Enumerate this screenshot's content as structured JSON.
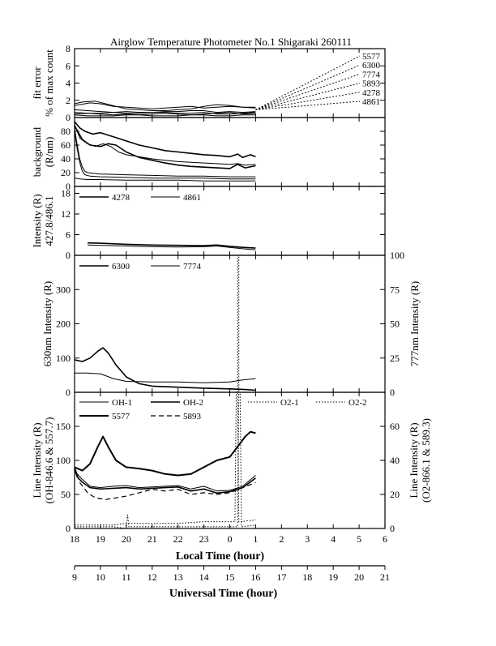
{
  "chart_data": {
    "type": "line",
    "title": "Airglow Temperature Photometer No.1  Shigaraki  260111",
    "x": {
      "local_label": "Local Time (hour)",
      "local_ticks": [
        "18",
        "19",
        "20",
        "21",
        "22",
        "23",
        "0",
        "1",
        "2",
        "3",
        "4",
        "5",
        "6"
      ],
      "ut_label": "Universal Time (hour)",
      "ut_ticks": [
        "9",
        "10",
        "11",
        "12",
        "13",
        "14",
        "15",
        "16",
        "17",
        "18",
        "19",
        "20",
        "21"
      ],
      "range_ut": [
        9,
        21
      ]
    },
    "panels": [
      {
        "id": "fit-error",
        "ylabel_lines": [
          "fit error",
          "% of max count"
        ],
        "ylim": [
          0,
          8
        ],
        "yticks": [
          "0",
          "2",
          "4",
          "6",
          "8"
        ],
        "series": [
          {
            "name": "5577",
            "style": "solid",
            "width": 1,
            "x": [
              9,
              9.2,
              9.6,
              10,
              10.5,
              11,
              11.5,
              12,
              12.5,
              13,
              13.5,
              14,
              14.5,
              15,
              15.5,
              16
            ],
            "y": [
              1.4,
              1.5,
              1.7,
              1.6,
              1.3,
              1.2,
              1.1,
              1.0,
              1.1,
              1.2,
              1.3,
              1.1,
              1.2,
              1.3,
              1.2,
              1.1
            ]
          },
          {
            "name": "6300",
            "style": "solid",
            "width": 1,
            "x": [
              9,
              9.3,
              9.8,
              10.2,
              10.6,
              11,
              11.5,
              12,
              12.5,
              13,
              13.5,
              14,
              14.5,
              15,
              15.5,
              16
            ],
            "y": [
              1.6,
              1.8,
              1.9,
              1.6,
              1.3,
              1.0,
              0.9,
              0.8,
              0.8,
              0.9,
              1.0,
              1.3,
              1.5,
              1.4,
              1.2,
              1.2
            ]
          },
          {
            "name": "7774",
            "style": "solid",
            "width": 1,
            "x": [
              9,
              9.5,
              10,
              10.5,
              11,
              11.5,
              12,
              12.5,
              13,
              13.5,
              14,
              14.5,
              15,
              15.5,
              16
            ],
            "y": [
              0.6,
              0.5,
              0.5,
              0.6,
              0.7,
              0.6,
              0.6,
              0.7,
              0.7,
              0.8,
              0.8,
              0.6,
              0.7,
              0.6,
              0.7
            ]
          },
          {
            "name": "5893",
            "style": "solid",
            "width": 1,
            "x": [
              9,
              9.5,
              10,
              10.5,
              11,
              11.5,
              12,
              12.5,
              13,
              13.5,
              14,
              14.5,
              15,
              15.5,
              16
            ],
            "y": [
              0.9,
              0.8,
              0.7,
              0.6,
              0.5,
              0.5,
              0.6,
              0.6,
              0.5,
              0.5,
              0.6,
              0.4,
              0.4,
              0.5,
              0.6
            ]
          },
          {
            "name": "4278",
            "style": "solid",
            "width": 1,
            "x": [
              9,
              9.5,
              10,
              10.5,
              11,
              11.5,
              12,
              12.5,
              13,
              13.5,
              14,
              14.5,
              15,
              15.5,
              16
            ],
            "y": [
              0.3,
              0.2,
              0.2,
              0.2,
              0.3,
              0.3,
              0.2,
              0.2,
              0.2,
              0.3,
              0.3,
              0.2,
              0.2,
              0.3,
              0.3
            ]
          },
          {
            "name": "4861",
            "style": "solid",
            "width": 1,
            "x": [
              9,
              9.5,
              10,
              10.5,
              11,
              11.5,
              12,
              12.5,
              13,
              13.5,
              14,
              14.5,
              15,
              15.5,
              16
            ],
            "y": [
              0.4,
              0.5,
              0.4,
              0.3,
              0.4,
              0.3,
              0.4,
              0.5,
              0.4,
              0.3,
              0.4,
              0.5,
              0.6,
              0.4,
              0.5
            ]
          }
        ],
        "labels": [
          "5577",
          "6300",
          "7774",
          "5893",
          "4278",
          "4861"
        ]
      },
      {
        "id": "background",
        "ylabel_lines": [
          "background",
          "(R/nm)"
        ],
        "ylim": [
          0,
          100
        ],
        "yticks": [
          "0",
          "20",
          "40",
          "60",
          "80"
        ],
        "series": [
          {
            "name": "5577",
            "style": "solid",
            "width": 1.6,
            "x": [
              9,
              9.2,
              9.4,
              9.7,
              10,
              10.5,
              11,
              11.5,
              12,
              12.5,
              13,
              13.5,
              14,
              14.5,
              15,
              15.3,
              15.5,
              15.8,
              16
            ],
            "y": [
              94,
              85,
              80,
              76,
              78,
              72,
              66,
              60,
              56,
              52,
              50,
              48,
              46,
              45,
              43,
              47,
              42,
              46,
              43
            ]
          },
          {
            "name": "6300",
            "style": "solid",
            "width": 1,
            "x": [
              9,
              9.2,
              9.5,
              9.8,
              10.1,
              10.4,
              10.7,
              11,
              11.5,
              12,
              12.5,
              13,
              13.5,
              14,
              14.5,
              15,
              15.3,
              15.6,
              16
            ],
            "y": [
              90,
              70,
              62,
              58,
              62,
              58,
              50,
              46,
              43,
              40,
              38,
              36,
              35,
              34,
              33,
              32,
              33,
              31,
              32
            ]
          },
          {
            "name": "7774",
            "style": "solid",
            "width": 1.6,
            "x": [
              9,
              9.3,
              9.6,
              10,
              10.3,
              10.6,
              11,
              11.5,
              12,
              12.5,
              13,
              13.5,
              14,
              14.5,
              15,
              15.3,
              15.6,
              16
            ],
            "y": [
              88,
              68,
              60,
              58,
              62,
              60,
              50,
              42,
              38,
              34,
              31,
              29,
              28,
              27,
              26,
              32,
              27,
              30
            ]
          },
          {
            "name": "5893",
            "style": "solid",
            "width": 1,
            "x": [
              9,
              9.1,
              9.2,
              9.3,
              9.4,
              9.5,
              10,
              11,
              12,
              13,
              14,
              15,
              16
            ],
            "y": [
              85,
              60,
              40,
              28,
              22,
              20,
              18,
              17,
              16,
              15,
              15,
              14,
              14
            ]
          },
          {
            "name": "4278",
            "style": "solid",
            "width": 1,
            "x": [
              9,
              9.1,
              9.2,
              9.3,
              9.4,
              9.6,
              10,
              11,
              12,
              13,
              14,
              15,
              16
            ],
            "y": [
              80,
              55,
              35,
              22,
              17,
              15,
              14,
              13,
              12,
              12,
              12,
              11,
              11
            ]
          },
          {
            "name": "4861",
            "style": "solid",
            "width": 1,
            "x": [
              9,
              9.2,
              9.5,
              10,
              11,
              12,
              13,
              14,
              15,
              16
            ],
            "y": [
              12,
              11,
              10,
              10,
              9,
              9,
              9,
              8,
              8,
              8
            ]
          }
        ]
      },
      {
        "id": "intensity-427-486",
        "ylabel_lines": [
          "Intensity (R)",
          "427.8/486.1"
        ],
        "ylim": [
          0,
          20
        ],
        "yticks": [
          "0",
          "6",
          "12",
          "18"
        ],
        "legend": [
          "4278",
          "4861"
        ],
        "series": [
          {
            "name": "4278",
            "style": "solid",
            "width": 1.6,
            "x": [
              9.5,
              10,
              11,
              12,
              13,
              14,
              14.5,
              15,
              15.5,
              16
            ],
            "y": [
              3.6,
              3.5,
              3.2,
              3.0,
              2.9,
              2.8,
              3.0,
              2.6,
              2.3,
              2.1
            ]
          },
          {
            "name": "4861",
            "style": "solid",
            "width": 1,
            "x": [
              9.5,
              10,
              11,
              12,
              13,
              14,
              14.5,
              15,
              15.5,
              16
            ],
            "y": [
              3.0,
              2.9,
              2.7,
              2.5,
              2.4,
              2.5,
              2.7,
              2.3,
              1.9,
              1.6
            ]
          }
        ]
      },
      {
        "id": "630-777",
        "ylabel": "630nm Intensity (R)",
        "ylabel_right": "777nm Intensity (R)",
        "ylim": [
          0,
          400
        ],
        "yticks": [
          "0",
          "100",
          "200",
          "300"
        ],
        "ylim_right": [
          0,
          100
        ],
        "yticks_right": [
          "0",
          "25",
          "50",
          "75",
          "100"
        ],
        "legend": [
          "6300",
          "7774"
        ],
        "series": [
          {
            "name": "6300",
            "axis": "left",
            "style": "solid",
            "width": 1.6,
            "x": [
              9,
              9.3,
              9.6,
              9.9,
              10.1,
              10.3,
              10.6,
              11,
              11.5,
              12,
              13,
              14,
              15,
              15.3,
              15.6,
              16
            ],
            "y": [
              95,
              90,
              100,
              120,
              130,
              115,
              80,
              45,
              25,
              18,
              15,
              12,
              10,
              9,
              8,
              6
            ]
          },
          {
            "name": "7774",
            "axis": "right",
            "style": "solid",
            "width": 1,
            "x": [
              9,
              9.5,
              10,
              10.5,
              11,
              12,
              13,
              14,
              15,
              15.5,
              16
            ],
            "y": [
              14,
              14,
              13.5,
              10,
              8,
              7.5,
              7.5,
              7,
              7.5,
              9,
              10
            ]
          },
          {
            "name": "spike",
            "axis": "left",
            "style": "dotted",
            "width": 1,
            "x": [
              15.3,
              15.3,
              15.35,
              15.35
            ],
            "y": [
              0,
              395,
              395,
              0
            ]
          }
        ]
      },
      {
        "id": "line-intensity",
        "ylabel_lines": [
          "Line Intensity (R)",
          "(OH-846.6 & 557.7)"
        ],
        "ylabel_right_lines": [
          "Line Intensity (R)",
          "(O2-866.1 & 589.3)"
        ],
        "ylim": [
          0,
          200
        ],
        "yticks": [
          "0",
          "50",
          "100",
          "150"
        ],
        "ylim_right": [
          0,
          80
        ],
        "yticks_right": [
          "0",
          "20",
          "40",
          "60"
        ],
        "legend": [
          "OH-1",
          "OH-2",
          "O2-1",
          "O2-2",
          "5577",
          "5893"
        ],
        "series": [
          {
            "name": "5577",
            "axis": "left",
            "style": "solid",
            "width": 2,
            "x": [
              9,
              9.3,
              9.6,
              9.9,
              10.1,
              10.3,
              10.6,
              11,
              11.5,
              12,
              12.5,
              13,
              13.5,
              14,
              14.5,
              15,
              15.3,
              15.6,
              15.8,
              16
            ],
            "y": [
              90,
              85,
              95,
              120,
              135,
              120,
              100,
              90,
              88,
              85,
              80,
              78,
              80,
              90,
              100,
              105,
              120,
              135,
              142,
              140
            ]
          },
          {
            "name": "OH-1",
            "axis": "left",
            "style": "solid",
            "width": 1,
            "x": [
              9,
              9.1,
              9.3,
              9.6,
              10,
              10.5,
              11,
              11.5,
              12,
              12.5,
              13,
              13.5,
              14,
              14.5,
              15,
              15.5,
              16
            ],
            "y": [
              90,
              80,
              72,
              62,
              60,
              62,
              63,
              60,
              61,
              62,
              63,
              58,
              62,
              55,
              56,
              62,
              78
            ]
          },
          {
            "name": "OH-2",
            "axis": "left",
            "style": "solid",
            "width": 1.6,
            "x": [
              9,
              9.1,
              9.3,
              9.6,
              10,
              10.5,
              11,
              11.5,
              12,
              12.5,
              13,
              13.5,
              14,
              14.5,
              15,
              15.5,
              16
            ],
            "y": [
              88,
              76,
              68,
              60,
              58,
              59,
              60,
              58,
              59,
              60,
              61,
              55,
              58,
              52,
              54,
              60,
              74
            ]
          },
          {
            "name": "5893",
            "axis": "right",
            "style": "dashed",
            "width": 1.2,
            "x": [
              9,
              9.2,
              9.5,
              9.8,
              10.2,
              10.6,
              11,
              11.5,
              12,
              12.5,
              13,
              13.5,
              14,
              14.5,
              15,
              15.5,
              16
            ],
            "y": [
              36,
              27,
              21,
              18,
              17,
              18,
              19,
              21,
              23,
              22,
              23,
              20,
              21,
              20,
              21,
              24,
              27
            ]
          },
          {
            "name": "O2-1",
            "axis": "right",
            "style": "dotted",
            "width": 1,
            "x": [
              9,
              9.5,
              10,
              10.5,
              11,
              12,
              13,
              14,
              15,
              15.2,
              15.25,
              15.3,
              15.35,
              15.4,
              16
            ],
            "y": [
              2,
              2,
              2,
              2,
              3,
              3,
              3,
              4,
              4,
              4,
              80,
              80,
              4,
              4,
              5
            ]
          },
          {
            "name": "O2-2",
            "axis": "right",
            "style": "dotted",
            "width": 1,
            "x": [
              9,
              9.5,
              10,
              10.5,
              11,
              11.05,
              11.1,
              12,
              13,
              14,
              15,
              15.3,
              15.35,
              15.4,
              15.45,
              16
            ],
            "y": [
              1,
              1,
              1,
              1,
              0,
              8,
              1,
              1,
              1,
              1,
              1,
              1,
              80,
              80,
              1,
              2
            ]
          }
        ]
      }
    ]
  }
}
